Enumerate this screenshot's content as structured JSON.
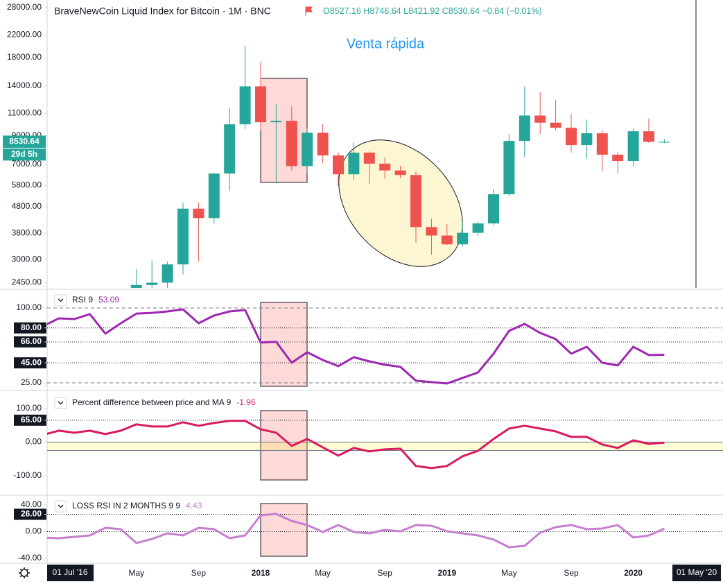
{
  "chart_data": [
    {
      "type": "candlestick",
      "title": "BraveNewCoin Liquid Index for Bitcoin · 1M · BNC",
      "ohlc_letters": [
        "O",
        "H",
        "L",
        "C"
      ],
      "change_label": "−0.84 (−0.01%)",
      "countdown": "29d 5h",
      "annotation": "Venta rápida",
      "up_color": "#26a69a",
      "down_color": "#ef5350",
      "log_scale": true,
      "categories": [
        "2016-11",
        "2016-12",
        "2017-01",
        "2017-02",
        "2017-03",
        "2017-04",
        "2017-05",
        "2017-06",
        "2017-07",
        "2017-08",
        "2017-09",
        "2017-10",
        "2017-11",
        "2017-12",
        "2018-01",
        "2018-02",
        "2018-03",
        "2018-04",
        "2018-05",
        "2018-06",
        "2018-07",
        "2018-08",
        "2018-09",
        "2018-10",
        "2018-11",
        "2018-12",
        "2019-01",
        "2019-02",
        "2019-03",
        "2019-04",
        "2019-05",
        "2019-06",
        "2019-07",
        "2019-08",
        "2019-09",
        "2019-10",
        "2019-11",
        "2019-12",
        "2020-01",
        "2020-02",
        "2020-03"
      ],
      "open": [
        null,
        null,
        null,
        null,
        null,
        null,
        2300,
        2400,
        2450,
        2880,
        4720,
        4340,
        6440,
        9960,
        13950,
        10150,
        10270,
        6880,
        9240,
        7560,
        6400,
        7750,
        7030,
        6620,
        6360,
        4010,
        3720,
        3440,
        3810,
        4140,
        5360,
        8600,
        10770,
        10110,
        9660,
        8290,
        9200,
        7610,
        7200,
        9370,
        8527.16
      ],
      "high": [
        null,
        null,
        null,
        null,
        null,
        null,
        2760,
        2980,
        2950,
        4980,
        4980,
        6450,
        11530,
        19990,
        17320,
        11900,
        11680,
        9660,
        10000,
        7760,
        8490,
        7830,
        7420,
        6900,
        6560,
        4320,
        4120,
        4210,
        4200,
        5620,
        9140,
        13900,
        13270,
        12350,
        10920,
        10400,
        9470,
        7750,
        9570,
        10500,
        8746.64
      ],
      "low": [
        null,
        null,
        null,
        null,
        null,
        null,
        1950,
        2100,
        1850,
        2640,
        2950,
        4140,
        5520,
        9550,
        9400,
        5920,
        6610,
        6450,
        7050,
        5780,
        6110,
        5890,
        6150,
        6180,
        3480,
        3140,
        3420,
        3370,
        3700,
        4080,
        5300,
        7470,
        9140,
        9450,
        7750,
        7340,
        6570,
        6480,
        6870,
        8450,
        8421.92
      ],
      "close": [
        null,
        null,
        null,
        null,
        null,
        null,
        2400,
        2450,
        2880,
        4720,
        4340,
        6440,
        9960,
        13950,
        10150,
        10270,
        6880,
        9240,
        7560,
        6400,
        7750,
        7030,
        6620,
        6360,
        4010,
        3720,
        3440,
        3810,
        4140,
        5360,
        8600,
        10770,
        10110,
        9660,
        8290,
        9200,
        7610,
        7200,
        9370,
        8530,
        8530.64
      ],
      "ylim": [
        2340,
        29960
      ],
      "yticks": [
        {
          "value": 28000,
          "label": "28000.00"
        },
        {
          "value": 22000,
          "label": "22000.00"
        },
        {
          "value": 18000,
          "label": "18000.00"
        },
        {
          "value": 14000,
          "label": "14000.00"
        },
        {
          "value": 11000,
          "label": "11000.00"
        },
        {
          "value": 9000,
          "label": "9000.00"
        },
        {
          "value": 7000,
          "label": "7000.00"
        },
        {
          "value": 5800,
          "label": "5800.00"
        },
        {
          "value": 4800,
          "label": "4800.00"
        },
        {
          "value": 3800,
          "label": "3800.00"
        },
        {
          "value": 3000,
          "label": "3000.00"
        },
        {
          "value": 2450,
          "label": "2450.00"
        }
      ],
      "xticks": [
        {
          "value": 6,
          "label": "May"
        },
        {
          "value": 10,
          "label": "Sep"
        },
        {
          "value": 14,
          "label": "2018"
        },
        {
          "value": 18,
          "label": "May"
        },
        {
          "value": 22,
          "label": "Sep"
        },
        {
          "value": 26,
          "label": "2019"
        },
        {
          "value": 30,
          "label": "May"
        },
        {
          "value": 34,
          "label": "Sep"
        },
        {
          "value": 38,
          "label": "2020"
        }
      ],
      "time_badges": [
        "01 Jul '16",
        "01 May '20"
      ]
    },
    {
      "type": "line",
      "title": "RSI 9",
      "color": "#9c27b0",
      "values": [
        81.9,
        89.6,
        88.9,
        93.8,
        74.3,
        84.7,
        94.4,
        95.1,
        96.5,
        98.6,
        84.7,
        92.4,
        96.5,
        97.9,
        65.3,
        66.0,
        45.1,
        55.6,
        47.9,
        41.7,
        50.7,
        46.5,
        43.1,
        41.0,
        27.1,
        25.7,
        24.3,
        29.9,
        35.4,
        54.2,
        77.1,
        84.0,
        75.0,
        68.8,
        54.2,
        61.1,
        45.1,
        42.4,
        61.1,
        52.8,
        53.09
      ],
      "ylim": [
        19.4,
        114.6
      ],
      "yticks": [
        {
          "value": 100,
          "label": "100.00"
        },
        {
          "value": 80,
          "label": "80.00"
        },
        {
          "value": 66,
          "label": "66.00"
        },
        {
          "value": 45,
          "label": "45.00"
        },
        {
          "value": 25,
          "label": "25.00"
        }
      ],
      "tick_lines": [
        "dashed",
        "dotted",
        "dotted",
        "dotted",
        "dashed"
      ],
      "tick_badges": [
        false,
        true,
        true,
        true,
        false
      ]
    },
    {
      "type": "line",
      "title": "Percent difference between price and MA 9",
      "color": "#d81b60",
      "values": [
        21.6,
        34.0,
        27.8,
        34.0,
        23.7,
        34.0,
        52.6,
        46.4,
        46.4,
        58.8,
        48.5,
        56.7,
        62.9,
        62.9,
        38.1,
        27.8,
        -11.3,
        9.3,
        -15.5,
        -40.2,
        -17.5,
        -27.8,
        -21.6,
        -19.6,
        -71.1,
        -77.3,
        -71.1,
        -42.3,
        -25.8,
        9.3,
        40.2,
        48.5,
        40.2,
        32.0,
        15.5,
        15.5,
        -7.2,
        -17.5,
        5.2,
        -5.2,
        -1.96
      ],
      "ylim": [
        -153.6,
        147
      ],
      "band": [
        -25,
        0
      ],
      "band_color": "rgba(255,235,59,0.22)",
      "yticks": [
        {
          "value": 100,
          "label": "100.00"
        },
        {
          "value": 65,
          "label": "65.00"
        },
        {
          "value": 0,
          "label": "0.00"
        },
        {
          "value": -100,
          "label": "-100.00"
        }
      ],
      "tick_lines": [
        "none",
        "dotted",
        "none",
        "none"
      ],
      "tick_badges": [
        false,
        true,
        false,
        false
      ]
    },
    {
      "type": "line",
      "title": "LOSS RSI IN 2 MONTHS 9 9",
      "color": "#c77dd0",
      "values": [
        -8.8,
        -9.9,
        -7.8,
        -5.7,
        5.7,
        3.6,
        -17.1,
        -10.9,
        -2.6,
        -5.7,
        5.7,
        3.6,
        -9.9,
        -5.7,
        24.4,
        26.5,
        16.1,
        9.9,
        -0.5,
        9.9,
        -0.5,
        -2.6,
        2.6,
        0.5,
        9.9,
        8.8,
        0.5,
        -2.6,
        -5.7,
        -11.9,
        -23.4,
        -21.3,
        -1.6,
        6.8,
        9.9,
        3.6,
        4.7,
        9.9,
        -8.8,
        -5.7,
        4.43
      ],
      "ylim": [
        -47.3,
        52.5
      ],
      "yticks": [
        {
          "value": 40,
          "label": "40.00"
        },
        {
          "value": 26,
          "label": "26.00"
        },
        {
          "value": 0,
          "label": "0.00"
        },
        {
          "value": -40,
          "label": "-40.00"
        }
      ],
      "tick_lines": [
        "none",
        "dotted",
        "dotted",
        "none"
      ],
      "tick_badges": [
        false,
        true,
        false,
        false
      ]
    }
  ]
}
